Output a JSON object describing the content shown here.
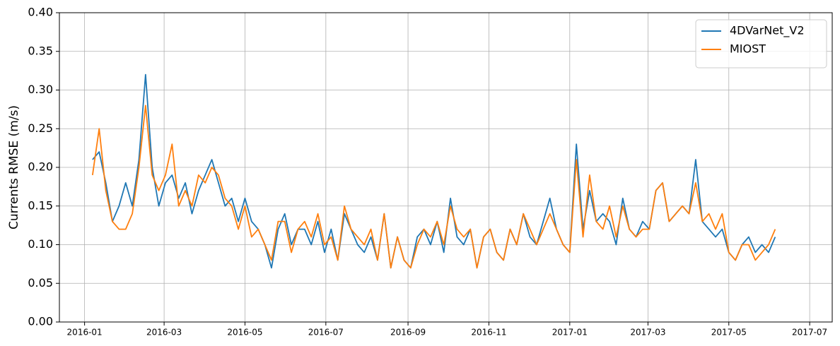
{
  "chart_data": {
    "type": "line",
    "y_label": "Currents RMSE (m/s)",
    "x": [
      "2016-01-07",
      "2016-01-12",
      "2016-01-17",
      "2016-01-22",
      "2016-01-27",
      "2016-02-01",
      "2016-02-06",
      "2016-02-11",
      "2016-02-16",
      "2016-02-21",
      "2016-02-26",
      "2016-03-02",
      "2016-03-07",
      "2016-03-12",
      "2016-03-17",
      "2016-03-22",
      "2016-03-27",
      "2016-04-01",
      "2016-04-06",
      "2016-04-11",
      "2016-04-16",
      "2016-04-21",
      "2016-04-26",
      "2016-05-01",
      "2016-05-06",
      "2016-05-11",
      "2016-05-16",
      "2016-05-21",
      "2016-05-26",
      "2016-05-31",
      "2016-06-05",
      "2016-06-10",
      "2016-06-15",
      "2016-06-20",
      "2016-06-25",
      "2016-06-30",
      "2016-07-05",
      "2016-07-10",
      "2016-07-15",
      "2016-07-20",
      "2016-07-25",
      "2016-07-30",
      "2016-08-04",
      "2016-08-09",
      "2016-08-14",
      "2016-08-19",
      "2016-08-24",
      "2016-08-29",
      "2016-09-03",
      "2016-09-08",
      "2016-09-13",
      "2016-09-18",
      "2016-09-23",
      "2016-09-28",
      "2016-10-03",
      "2016-10-08",
      "2016-10-13",
      "2016-10-18",
      "2016-10-23",
      "2016-10-28",
      "2016-11-02",
      "2016-11-07",
      "2016-11-12",
      "2016-11-17",
      "2016-11-22",
      "2016-11-27",
      "2016-12-02",
      "2016-12-07",
      "2016-12-12",
      "2016-12-17",
      "2016-12-22",
      "2016-12-27",
      "2017-01-01",
      "2017-01-06",
      "2017-01-11",
      "2017-01-16",
      "2017-01-21",
      "2017-01-26",
      "2017-01-31",
      "2017-02-05",
      "2017-02-10",
      "2017-02-15",
      "2017-02-20",
      "2017-02-25",
      "2017-03-02",
      "2017-03-07",
      "2017-03-12",
      "2017-03-17",
      "2017-03-22",
      "2017-03-27",
      "2017-04-01",
      "2017-04-06",
      "2017-04-11",
      "2017-04-16",
      "2017-04-21",
      "2017-04-26",
      "2017-05-01",
      "2017-05-06",
      "2017-05-11",
      "2017-05-16",
      "2017-05-21",
      "2017-05-26",
      "2017-05-31",
      "2017-06-05"
    ],
    "series": [
      {
        "name": "4DVarNet_V2",
        "color": "#1f77b4",
        "values": [
          0.21,
          0.22,
          0.18,
          0.13,
          0.15,
          0.18,
          0.15,
          0.21,
          0.32,
          0.2,
          0.15,
          0.18,
          0.19,
          0.16,
          0.18,
          0.14,
          0.17,
          0.19,
          0.21,
          0.18,
          0.15,
          0.16,
          0.13,
          0.16,
          0.13,
          0.12,
          0.1,
          0.07,
          0.12,
          0.14,
          0.1,
          0.12,
          0.12,
          0.1,
          0.13,
          0.09,
          0.12,
          0.08,
          0.14,
          0.12,
          0.1,
          0.09,
          0.11,
          0.08,
          0.14,
          0.07,
          0.11,
          0.08,
          0.07,
          0.11,
          0.12,
          0.1,
          0.13,
          0.09,
          0.16,
          0.11,
          0.1,
          0.12,
          0.07,
          0.11,
          0.12,
          0.09,
          0.08,
          0.12,
          0.1,
          0.14,
          0.11,
          0.1,
          0.13,
          0.16,
          0.12,
          0.1,
          0.09,
          0.23,
          0.12,
          0.17,
          0.13,
          0.14,
          0.13,
          0.1,
          0.16,
          0.12,
          0.11,
          0.13,
          0.12,
          0.17,
          0.18,
          0.13,
          0.14,
          0.15,
          0.14,
          0.21,
          0.13,
          0.12,
          0.11,
          0.12,
          0.09,
          0.08,
          0.1,
          0.11,
          0.09,
          0.1,
          0.09,
          0.11
        ]
      },
      {
        "name": "MIOST",
        "color": "#ff7f0e",
        "values": [
          0.19,
          0.25,
          0.17,
          0.13,
          0.12,
          0.12,
          0.14,
          0.2,
          0.28,
          0.19,
          0.17,
          0.19,
          0.23,
          0.15,
          0.17,
          0.15,
          0.19,
          0.18,
          0.2,
          0.19,
          0.16,
          0.15,
          0.12,
          0.15,
          0.11,
          0.12,
          0.1,
          0.08,
          0.13,
          0.13,
          0.09,
          0.12,
          0.13,
          0.11,
          0.14,
          0.1,
          0.11,
          0.08,
          0.15,
          0.12,
          0.11,
          0.1,
          0.12,
          0.08,
          0.14,
          0.07,
          0.11,
          0.08,
          0.07,
          0.1,
          0.12,
          0.11,
          0.13,
          0.1,
          0.15,
          0.12,
          0.11,
          0.12,
          0.07,
          0.11,
          0.12,
          0.09,
          0.08,
          0.12,
          0.1,
          0.14,
          0.12,
          0.1,
          0.12,
          0.14,
          0.12,
          0.1,
          0.09,
          0.21,
          0.11,
          0.19,
          0.13,
          0.12,
          0.15,
          0.11,
          0.15,
          0.12,
          0.11,
          0.12,
          0.12,
          0.17,
          0.18,
          0.13,
          0.14,
          0.15,
          0.14,
          0.18,
          0.13,
          0.14,
          0.12,
          0.14,
          0.09,
          0.08,
          0.1,
          0.1,
          0.08,
          0.09,
          0.1,
          0.12
        ]
      }
    ],
    "xlim": [
      "2015-12-13",
      "2017-07-18"
    ],
    "xticks": [
      "2016-01",
      "2016-03",
      "2016-05",
      "2016-07",
      "2016-09",
      "2016-11",
      "2017-01",
      "2017-03",
      "2017-05",
      "2017-07"
    ],
    "ylim": [
      0,
      0.4
    ],
    "yticks": [
      {
        "value": 0,
        "label": "0.00"
      },
      0.05,
      {
        "value": 0.1,
        "label": "0.10"
      },
      0.15,
      {
        "value": 0.2,
        "label": "0.20"
      },
      0.25,
      {
        "value": 0.3,
        "label": "0.30"
      },
      0.35,
      {
        "value": 0.4,
        "label": "0.40"
      }
    ],
    "grid": true,
    "legend_position": "upper right"
  }
}
